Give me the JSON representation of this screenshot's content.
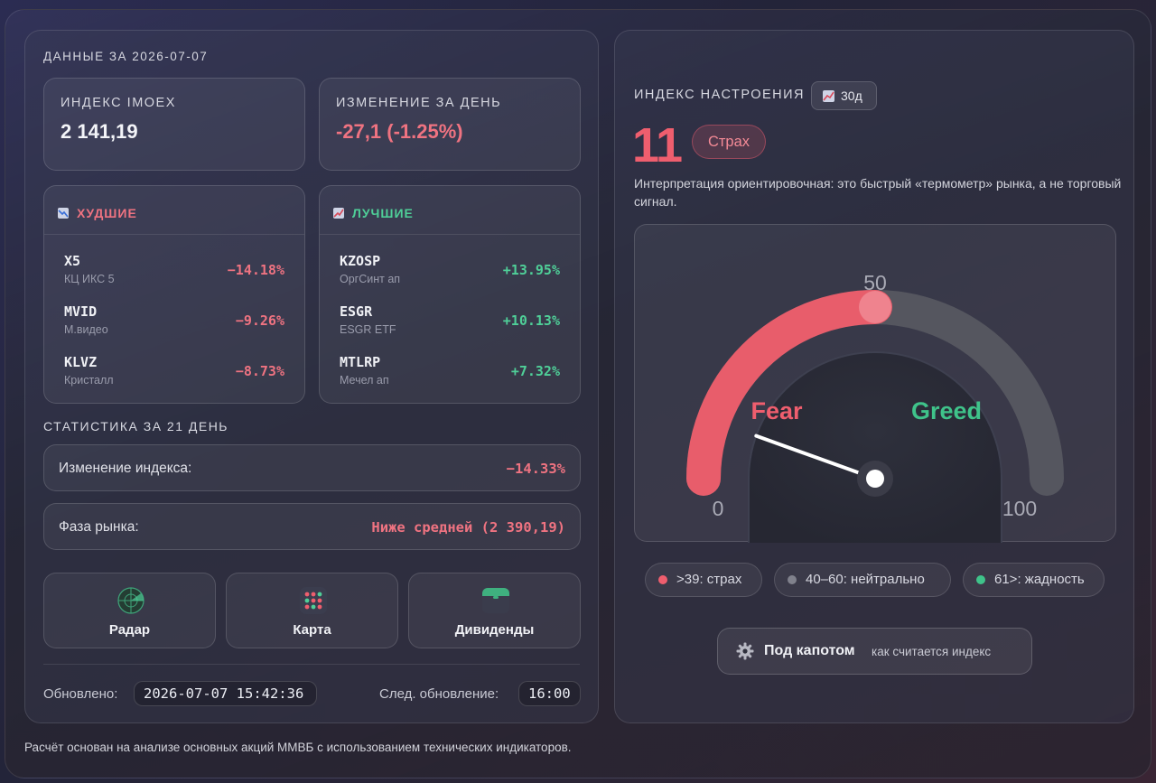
{
  "left": {
    "date_label": "ДАННЫЕ ЗА 2026-07-07",
    "index_card": {
      "label": "ИНДЕКС IMOEX",
      "value": "2 141,19"
    },
    "change_card": {
      "label": "ИЗМЕНЕНИЕ ЗА ДЕНЬ",
      "value": "-27,1 (-1.25%)"
    },
    "worst": {
      "title": "ХУДШИЕ",
      "icon": "chart-down-icon",
      "rows": [
        {
          "ticker": "X5",
          "name": "КЦ ИКС 5",
          "change": "−14.18%"
        },
        {
          "ticker": "MVID",
          "name": "М.видео",
          "change": "−9.26%"
        },
        {
          "ticker": "KLVZ",
          "name": "Кристалл",
          "change": "−8.73%"
        }
      ]
    },
    "best": {
      "title": "ЛУЧШИЕ",
      "icon": "chart-up-icon",
      "rows": [
        {
          "ticker": "KZOSP",
          "name": "ОргСинт ап",
          "change": "+13.95%"
        },
        {
          "ticker": "ESGR",
          "name": "ESGR ETF",
          "change": "+10.13%"
        },
        {
          "ticker": "MTLRP",
          "name": "Мечел ап",
          "change": "+7.32%"
        }
      ]
    },
    "stats_label": "СТАТИСТИКА ЗА 21 ДЕНЬ",
    "stat_index_change": {
      "label": "Изменение индекса:",
      "value": "−14.33%"
    },
    "stat_phase": {
      "label": "Фаза рынка:",
      "value": "Ниже средней (2 390,19)"
    },
    "nav": [
      {
        "label": "Радар",
        "icon": "radar-icon"
      },
      {
        "label": "Карта",
        "icon": "grid-map-icon"
      },
      {
        "label": "Дивиденды",
        "icon": "calendar-icon"
      }
    ],
    "updated_label": "Обновлено:",
    "updated_value": "2026-07-07 15:42:36",
    "next_label": "След. обновление:",
    "next_value": "16:00"
  },
  "right": {
    "title": "ИНДЕКС НАСТРОЕНИЯ",
    "period_button": "30д",
    "score": "11",
    "mood": "Страх",
    "interpretation": "Интерпретация ориентировочная: это быстрый «термометр» рынка, а не торговый сигнал.",
    "gauge": {
      "value": 11,
      "min": 0,
      "max": 100,
      "label_min": "0",
      "label_mid": "50",
      "label_max": "100",
      "label_fear": "Fear",
      "label_greed": "Greed"
    },
    "legend": [
      {
        "label": ">39: страх",
        "color": "#ef5e6e"
      },
      {
        "label": "40–60: нейтрально",
        "color": "#80818c"
      },
      {
        "label": "61>: жадность",
        "color": "#3fc38a"
      }
    ],
    "hood_button": {
      "title": "Под капотом",
      "subtitle": "как считается индекс"
    }
  },
  "footer_note": "Расчёт основан на анализе основных акций ММВБ с использованием технических индикаторов.",
  "colors": {
    "negative": "#ef7381",
    "positive": "#4fcf98",
    "fear": "#ef5e6e",
    "greed": "#3fc38a"
  }
}
